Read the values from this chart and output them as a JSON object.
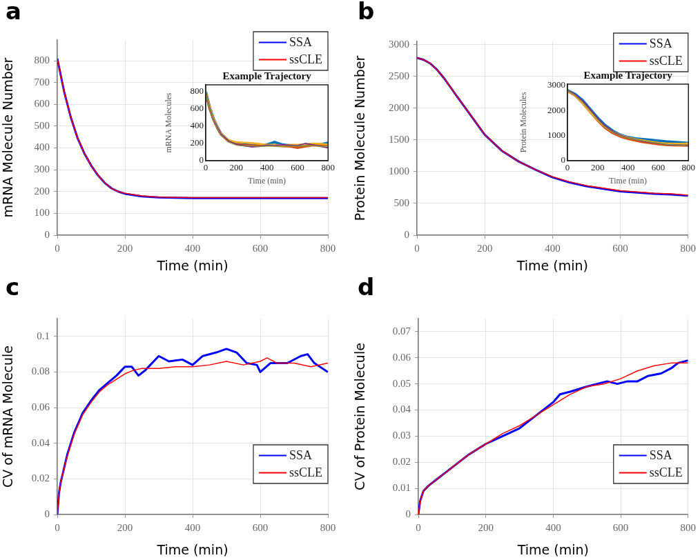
{
  "chart_data": [
    {
      "type": "line",
      "annotations": [
        "a"
      ],
      "xlabel": "Time (min)",
      "ylabel": "mRNA Molecule Number",
      "xlim": [
        0,
        800
      ],
      "ylim": [
        0,
        895
      ],
      "xticks": [
        0,
        200,
        400,
        600,
        800
      ],
      "yticks": [
        0,
        100,
        200,
        300,
        400,
        500,
        600,
        700,
        800
      ],
      "grid": true,
      "legend": "top right",
      "series": [
        {
          "name": "SSA",
          "color": "#0000ff",
          "x": [
            0,
            20,
            40,
            60,
            80,
            100,
            120,
            140,
            160,
            180,
            200,
            250,
            300,
            400,
            500,
            600,
            700,
            800
          ],
          "values": [
            810,
            660,
            540,
            445,
            375,
            320,
            275,
            240,
            215,
            200,
            190,
            178,
            173,
            170,
            170,
            170,
            170,
            170
          ]
        },
        {
          "name": "ssCLE",
          "color": "#ff0000",
          "x": [
            0,
            20,
            40,
            60,
            80,
            100,
            120,
            140,
            160,
            180,
            200,
            250,
            300,
            400,
            500,
            600,
            700,
            800
          ],
          "values": [
            810,
            660,
            540,
            445,
            375,
            320,
            275,
            240,
            215,
            200,
            192,
            180,
            175,
            172,
            172,
            172,
            172,
            172
          ]
        }
      ]
    },
    {
      "type": "line",
      "title": "Example Trajectory",
      "xlabel": "Time (min)",
      "ylabel": "mRNA Molecules",
      "xlim": [
        0,
        800
      ],
      "ylim": [
        0,
        880
      ],
      "xticks": [
        0,
        200,
        400,
        600,
        800
      ],
      "yticks": [
        0,
        200,
        400,
        600,
        800
      ],
      "series": [
        {
          "color": "#0072bd",
          "x": [
            0,
            25,
            50,
            75,
            100,
            150,
            200,
            250,
            300,
            350,
            400,
            450,
            500,
            550,
            600,
            650,
            700,
            750,
            800
          ],
          "values": [
            800,
            620,
            490,
            390,
            310,
            230,
            195,
            185,
            180,
            180,
            185,
            215,
            185,
            175,
            175,
            180,
            185,
            185,
            205
          ]
        },
        {
          "color": "#d95319",
          "x": [
            0,
            25,
            50,
            75,
            100,
            150,
            200,
            250,
            300,
            350,
            400,
            450,
            500,
            550,
            600,
            650,
            700,
            750,
            800
          ],
          "values": [
            790,
            610,
            480,
            385,
            305,
            225,
            190,
            180,
            175,
            175,
            180,
            175,
            170,
            165,
            150,
            165,
            180,
            175,
            180
          ]
        },
        {
          "color": "#edb120",
          "x": [
            0,
            25,
            50,
            75,
            100,
            150,
            200,
            250,
            300,
            350,
            400,
            450,
            500,
            550,
            600,
            650,
            700,
            750,
            800
          ],
          "values": [
            810,
            630,
            495,
            395,
            315,
            240,
            215,
            210,
            205,
            195,
            185,
            185,
            180,
            185,
            185,
            190,
            200,
            195,
            190
          ]
        },
        {
          "color": "#7e2f8e",
          "x": [
            0,
            25,
            50,
            75,
            100,
            150,
            200,
            250,
            300,
            350,
            400,
            450,
            500,
            550,
            600,
            650,
            700,
            750,
            800
          ],
          "values": [
            800,
            615,
            480,
            390,
            310,
            230,
            190,
            175,
            160,
            165,
            180,
            175,
            185,
            180,
            175,
            200,
            185,
            165,
            150
          ]
        },
        {
          "color": "#77ac30",
          "x": [
            0,
            25,
            50,
            75,
            100,
            150,
            200,
            250,
            300,
            350,
            400,
            450,
            500,
            550,
            600,
            650,
            700,
            750,
            800
          ],
          "values": [
            795,
            610,
            475,
            380,
            300,
            220,
            180,
            170,
            170,
            165,
            170,
            170,
            165,
            170,
            170,
            170,
            175,
            165,
            170
          ]
        }
      ]
    },
    {
      "type": "line",
      "annotations": [
        "b"
      ],
      "xlabel": "Time (min)",
      "ylabel": "Protein Molecule Number",
      "xlim": [
        0,
        800
      ],
      "ylim": [
        0,
        3050
      ],
      "xticks": [
        0,
        200,
        400,
        600,
        800
      ],
      "yticks": [
        0,
        500,
        1000,
        1500,
        2000,
        2500,
        3000
      ],
      "grid": true,
      "legend": "top right",
      "series": [
        {
          "name": "SSA",
          "color": "#0000ff",
          "x": [
            0,
            20,
            40,
            60,
            80,
            100,
            120,
            150,
            200,
            250,
            300,
            350,
            400,
            450,
            500,
            550,
            600,
            650,
            700,
            750,
            800
          ],
          "values": [
            2790,
            2760,
            2700,
            2600,
            2470,
            2320,
            2170,
            1950,
            1580,
            1330,
            1160,
            1030,
            910,
            830,
            770,
            730,
            690,
            670,
            650,
            640,
            620
          ]
        },
        {
          "name": "ssCLE",
          "color": "#ff0000",
          "x": [
            0,
            20,
            40,
            60,
            80,
            100,
            120,
            150,
            200,
            250,
            300,
            350,
            400,
            450,
            500,
            550,
            600,
            650,
            700,
            750,
            800
          ],
          "values": [
            2790,
            2760,
            2700,
            2600,
            2470,
            2320,
            2170,
            1950,
            1580,
            1330,
            1160,
            1030,
            920,
            840,
            780,
            740,
            700,
            680,
            660,
            650,
            630
          ]
        }
      ]
    },
    {
      "type": "line",
      "title": "Example Trajectory",
      "xlabel": "Time (min)",
      "ylabel": "Protein Molecules",
      "xlim": [
        0,
        800
      ],
      "ylim": [
        0,
        3050
      ],
      "xticks": [
        0,
        200,
        400,
        600,
        800
      ],
      "yticks": [
        0,
        1000,
        2000,
        3000
      ],
      "series": [
        {
          "color": "#0072bd",
          "x": [
            0,
            50,
            100,
            150,
            200,
            250,
            300,
            350,
            400,
            450,
            500,
            550,
            600,
            650,
            700,
            750,
            800
          ],
          "values": [
            2800,
            2650,
            2400,
            2050,
            1700,
            1400,
            1180,
            1020,
            930,
            880,
            850,
            820,
            790,
            760,
            740,
            720,
            700
          ]
        },
        {
          "color": "#d95319",
          "x": [
            0,
            50,
            100,
            150,
            200,
            250,
            300,
            350,
            400,
            450,
            500,
            550,
            600,
            650,
            700,
            750,
            800
          ],
          "values": [
            2780,
            2600,
            2300,
            1950,
            1600,
            1300,
            1100,
            960,
            870,
            800,
            740,
            700,
            660,
            630,
            620,
            610,
            600
          ]
        },
        {
          "color": "#edb120",
          "x": [
            0,
            50,
            100,
            150,
            200,
            250,
            300,
            350,
            400,
            450,
            500,
            550,
            600,
            650,
            700,
            750,
            800
          ],
          "values": [
            2790,
            2620,
            2300,
            1950,
            1620,
            1350,
            1160,
            1020,
            930,
            860,
            810,
            760,
            720,
            690,
            680,
            680,
            690
          ]
        },
        {
          "color": "#7e2f8e",
          "x": [
            0,
            50,
            100,
            150,
            200,
            250,
            300,
            350,
            400,
            450,
            500,
            550,
            600,
            650,
            700,
            750,
            800
          ],
          "values": [
            2800,
            2640,
            2380,
            2050,
            1680,
            1380,
            1170,
            1010,
            910,
            840,
            780,
            730,
            690,
            650,
            620,
            620,
            610
          ]
        },
        {
          "color": "#77ac30",
          "x": [
            0,
            50,
            100,
            150,
            200,
            250,
            300,
            350,
            400,
            450,
            500,
            550,
            600,
            650,
            700,
            750,
            800
          ],
          "values": [
            2790,
            2610,
            2320,
            1980,
            1630,
            1330,
            1130,
            990,
            900,
            840,
            790,
            740,
            690,
            650,
            630,
            620,
            610
          ]
        }
      ]
    },
    {
      "type": "line",
      "annotations": [
        "c"
      ],
      "xlabel": "Time (min)",
      "ylabel": "CV of mRNA Molecule",
      "xlim": [
        0,
        800
      ],
      "ylim": [
        0,
        0.11
      ],
      "xticks": [
        0,
        200,
        400,
        600,
        800
      ],
      "yticks": [
        0,
        0.02,
        0.04,
        0.06,
        0.08,
        0.1
      ],
      "grid": true,
      "legend": "bottom right",
      "series": [
        {
          "name": "SSA",
          "color": "#0000ff",
          "x": [
            0,
            5,
            10,
            20,
            30,
            50,
            75,
            100,
            125,
            150,
            175,
            200,
            220,
            240,
            260,
            300,
            330,
            370,
            400,
            430,
            470,
            500,
            530,
            560,
            590,
            600,
            630,
            680,
            720,
            740,
            760,
            800
          ],
          "values": [
            0,
            0.012,
            0.018,
            0.026,
            0.034,
            0.046,
            0.057,
            0.064,
            0.07,
            0.074,
            0.078,
            0.083,
            0.083,
            0.078,
            0.081,
            0.089,
            0.086,
            0.087,
            0.084,
            0.089,
            0.091,
            0.093,
            0.091,
            0.085,
            0.084,
            0.08,
            0.085,
            0.085,
            0.089,
            0.09,
            0.085,
            0.08
          ]
        },
        {
          "name": "ssCLE",
          "color": "#ff0000",
          "x": [
            0,
            5,
            10,
            20,
            30,
            50,
            75,
            100,
            125,
            150,
            175,
            200,
            225,
            250,
            300,
            350,
            400,
            450,
            500,
            550,
            600,
            620,
            650,
            700,
            750,
            800
          ],
          "values": [
            0,
            0.012,
            0.018,
            0.026,
            0.033,
            0.045,
            0.056,
            0.063,
            0.069,
            0.073,
            0.076,
            0.079,
            0.081,
            0.082,
            0.082,
            0.083,
            0.083,
            0.084,
            0.086,
            0.084,
            0.086,
            0.088,
            0.085,
            0.085,
            0.083,
            0.085
          ]
        }
      ]
    },
    {
      "type": "line",
      "annotations": [
        "d"
      ],
      "xlabel": "Time (min)",
      "ylabel": "CV of Protein Molecule",
      "xlim": [
        0,
        800
      ],
      "ylim": [
        0,
        0.075
      ],
      "xticks": [
        0,
        200,
        400,
        600,
        800
      ],
      "yticks": [
        0,
        0.01,
        0.02,
        0.03,
        0.04,
        0.05,
        0.06,
        0.07
      ],
      "grid": true,
      "legend": "bottom right",
      "series": [
        {
          "name": "SSA",
          "color": "#0000ff",
          "x": [
            0,
            5,
            15,
            30,
            50,
            100,
            150,
            200,
            250,
            300,
            350,
            400,
            420,
            450,
            500,
            530,
            560,
            590,
            620,
            650,
            680,
            720,
            750,
            770,
            800
          ],
          "values": [
            0,
            0.005,
            0.009,
            0.011,
            0.013,
            0.018,
            0.023,
            0.027,
            0.03,
            0.033,
            0.038,
            0.043,
            0.046,
            0.047,
            0.049,
            0.05,
            0.051,
            0.05,
            0.051,
            0.051,
            0.053,
            0.054,
            0.056,
            0.058,
            0.059
          ]
        },
        {
          "name": "ssCLE",
          "color": "#ff0000",
          "x": [
            0,
            5,
            15,
            30,
            50,
            100,
            150,
            200,
            250,
            300,
            350,
            400,
            450,
            500,
            550,
            600,
            650,
            700,
            750,
            800
          ],
          "values": [
            0,
            0.005,
            0.009,
            0.011,
            0.013,
            0.018,
            0.023,
            0.027,
            0.031,
            0.034,
            0.038,
            0.042,
            0.046,
            0.049,
            0.05,
            0.052,
            0.055,
            0.057,
            0.058,
            0.058
          ]
        }
      ]
    }
  ]
}
